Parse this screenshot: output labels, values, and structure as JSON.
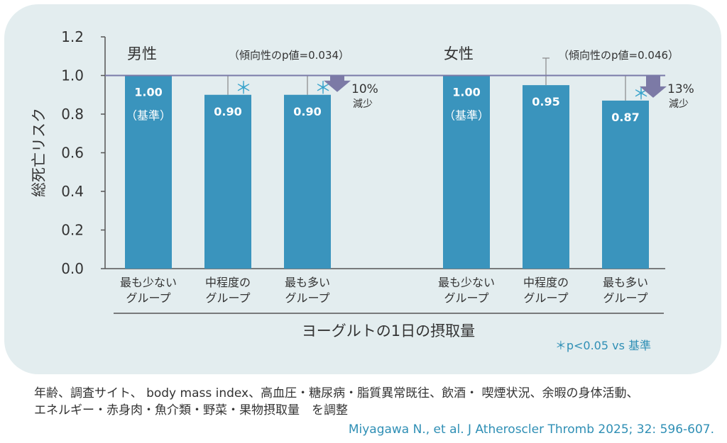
{
  "chart_data": {
    "type": "bar",
    "ylabel": "総死亡リスク",
    "xlabel": "ヨーグルトの1日の摂取量",
    "ylim": [
      0,
      1.2
    ],
    "yticks": [
      "0.0",
      "0.2",
      "0.4",
      "0.6",
      "0.8",
      "1.0",
      "1.2"
    ],
    "reference_line": 1.0,
    "groups": [
      {
        "name": "男性",
        "trend_p": "（傾向性のp値=0.034）",
        "reduction_pct": "10%",
        "reduction_label": "減少",
        "bars": [
          {
            "category": "最も少ない\nグループ",
            "value": 1.0,
            "label": "1.00",
            "sublabel": "（基準）",
            "significant": false,
            "ci_upper": null
          },
          {
            "category": "中程度の\nグループ",
            "value": 0.9,
            "label": "0.90",
            "sublabel": "",
            "significant": true,
            "ci_upper": 1.0
          },
          {
            "category": "最も多い\nグループ",
            "value": 0.9,
            "label": "0.90",
            "sublabel": "",
            "significant": true,
            "ci_upper": 1.0
          }
        ]
      },
      {
        "name": "女性",
        "trend_p": "（傾向性のp値=0.046）",
        "reduction_pct": "13%",
        "reduction_label": "減少",
        "bars": [
          {
            "category": "最も少ない\nグループ",
            "value": 1.0,
            "label": "1.00",
            "sublabel": "（基準）",
            "significant": false,
            "ci_upper": null
          },
          {
            "category": "中程度の\nグループ",
            "value": 0.95,
            "label": "0.95",
            "sublabel": "",
            "significant": false,
            "ci_upper": 1.09
          },
          {
            "category": "最も多い\nグループ",
            "value": 0.87,
            "label": "0.87",
            "sublabel": "",
            "significant": true,
            "ci_upper": 1.0
          }
        ]
      }
    ],
    "significance_note": "＊p<0.05 vs 基準",
    "significance_mark": "＊"
  },
  "footnote_line1": "年齢、調査サイト、 body mass index、高血圧・糖尿病・脂質異常既往、飲酒・ 喫煙状況、余暇の身体活動、",
  "footnote_line2": "エネルギー・赤身肉・魚介類・野菜・果物摂取量　を調整",
  "citation": "Miyagawa N., et al. J Atheroscler Thromb 2025; 32: 596-607.",
  "colors": {
    "bar": "#3a94bd",
    "ref_line": "#7a7aa8",
    "arrow": "#7c7aa6",
    "star": "#3aa4cc",
    "axis": "#555555"
  }
}
